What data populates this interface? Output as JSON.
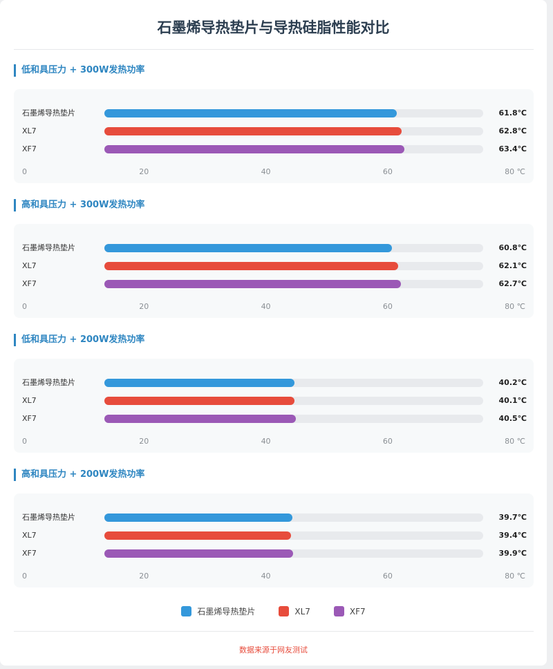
{
  "title": "石墨烯导热垫片与导热硅脂性能对比",
  "unit": "℃",
  "chart_data": [
    {
      "type": "bar",
      "title": "低和具压力 + 300W发热功率",
      "categories": [
        "石墨烯导热垫片",
        "XL7",
        "XF7"
      ],
      "values": [
        61.8,
        62.8,
        63.4
      ],
      "xlim": [
        0,
        80
      ],
      "ticks": [
        "0",
        "20",
        "40",
        "60",
        "80 ℃"
      ]
    },
    {
      "type": "bar",
      "title": "高和具压力 + 300W发热功率",
      "categories": [
        "石墨烯导热垫片",
        "XL7",
        "XF7"
      ],
      "values": [
        60.8,
        62.1,
        62.7
      ],
      "xlim": [
        0,
        80
      ],
      "ticks": [
        "0",
        "20",
        "40",
        "60",
        "80 ℃"
      ]
    },
    {
      "type": "bar",
      "title": "低和具压力 + 200W发热功率",
      "categories": [
        "石墨烯导热垫片",
        "XL7",
        "XF7"
      ],
      "values": [
        40.2,
        40.1,
        40.5
      ],
      "xlim": [
        0,
        80
      ],
      "ticks": [
        "0",
        "20",
        "40",
        "60",
        "80 ℃"
      ]
    },
    {
      "type": "bar",
      "title": "高和具压力 + 200W发热功率",
      "categories": [
        "石墨烯导热垫片",
        "XL7",
        "XF7"
      ],
      "values": [
        39.7,
        39.4,
        39.9
      ],
      "xlim": [
        0,
        80
      ],
      "ticks": [
        "0",
        "20",
        "40",
        "60",
        "80 ℃"
      ]
    }
  ],
  "colors": [
    "#3498db",
    "#e74c3c",
    "#9b59b6"
  ],
  "legend": [
    "石墨烯导热垫片",
    "XL7",
    "XF7"
  ],
  "footer": "数据来源于网友测试"
}
